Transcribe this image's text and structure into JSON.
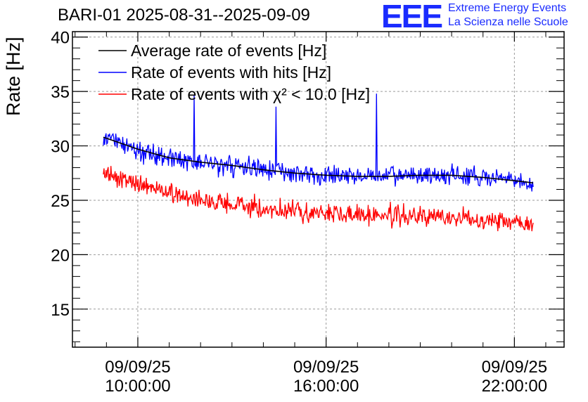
{
  "header": {
    "title": "BARI-01 2025-08-31--2025-09-09",
    "logo_text": "EEE",
    "logo_line1": "Extreme Energy Events",
    "logo_line2": "La Scienza nelle Scuole"
  },
  "colors": {
    "average": "#000000",
    "hits": "#0000ff",
    "chi2": "#ff0000",
    "grid": "#9a9a9a",
    "logo": "#1a2bff"
  },
  "chart_data": {
    "type": "line",
    "title": "BARI-01 2025-08-31--2025-09-09",
    "ylabel": "Rate [Hz]",
    "xlabel": "",
    "ylim": [
      11.5,
      40.5
    ],
    "xlim": [
      "09/09/25 07:55:00",
      "09/09/25 23:35:00"
    ],
    "grid": true,
    "legend_position": "top-left",
    "y_ticks": [
      15,
      20,
      25,
      30,
      35,
      40
    ],
    "y_tick_labels": [
      "15",
      "20",
      "25",
      "30",
      "35",
      "40"
    ],
    "x_ticks": [
      "09/09/25 10:00:00",
      "09/09/25 16:00:00",
      "09/09/25 22:00:00"
    ],
    "x_tick_labels": [
      {
        "date": "09/09/25",
        "time": "10:00:00"
      },
      {
        "date": "09/09/25",
        "time": "16:00:00"
      },
      {
        "date": "09/09/25",
        "time": "22:00:00"
      }
    ],
    "series": [
      {
        "name": "Average rate of events [Hz]",
        "x_hours": [
          8.9,
          9.5,
          10.0,
          11.0,
          12.0,
          13.0,
          14.0,
          15.0,
          16.0,
          17.0,
          18.0,
          19.0,
          20.0,
          21.0,
          22.0,
          22.6
        ],
        "values": [
          30.8,
          30.2,
          29.7,
          28.9,
          28.5,
          28.2,
          27.8,
          27.5,
          27.3,
          27.2,
          27.2,
          27.3,
          27.3,
          27.1,
          26.8,
          26.6
        ]
      },
      {
        "name": "Rate of events with hits [Hz]",
        "x_hours": [
          8.9,
          9.5,
          10.0,
          11.0,
          12.0,
          13.0,
          14.0,
          15.0,
          16.0,
          17.0,
          18.0,
          19.0,
          20.0,
          21.0,
          22.0,
          22.6
        ],
        "values": [
          30.8,
          30.2,
          29.7,
          28.9,
          28.5,
          28.2,
          27.8,
          27.5,
          27.3,
          27.2,
          27.2,
          27.3,
          27.3,
          27.1,
          26.8,
          26.4
        ],
        "noise_amplitude": 0.9,
        "spikes": [
          [
            11.8,
            34.7
          ],
          [
            14.4,
            33.6
          ],
          [
            17.6,
            34.8
          ]
        ]
      },
      {
        "name": "Rate of events with χ² < 10.0 [Hz]",
        "x_hours": [
          8.9,
          9.5,
          10.0,
          11.0,
          12.0,
          13.0,
          14.0,
          15.0,
          16.0,
          17.0,
          18.0,
          19.0,
          20.0,
          21.0,
          22.0,
          22.6
        ],
        "values": [
          27.5,
          27.0,
          26.5,
          25.7,
          25.0,
          24.6,
          24.2,
          24.0,
          23.8,
          23.7,
          23.6,
          23.5,
          23.4,
          23.3,
          23.1,
          22.9
        ],
        "noise_amplitude": 0.9,
        "spikes": []
      }
    ],
    "legend": [
      "Average rate of events [Hz]",
      "Rate of events with hits [Hz]",
      "Rate of events with χ² < 10.0 [Hz]"
    ]
  }
}
